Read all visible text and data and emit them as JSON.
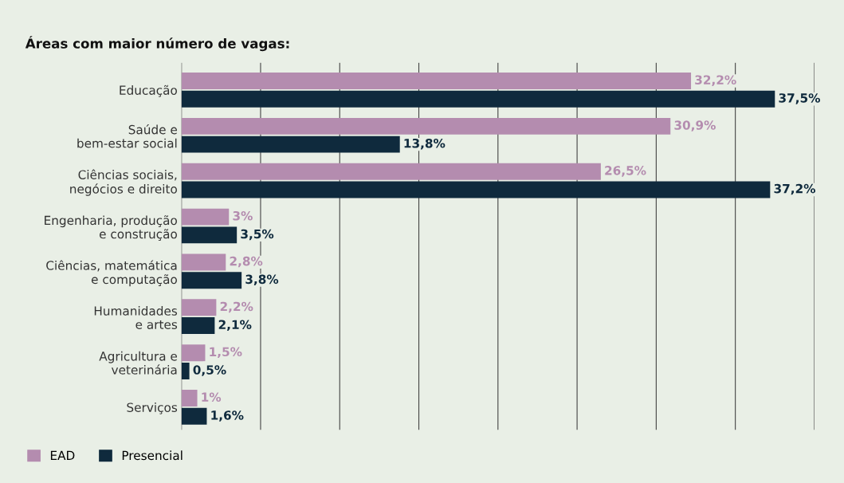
{
  "chart_data": {
    "type": "bar",
    "orientation": "horizontal",
    "title": "Áreas com maior número de vagas:",
    "categories": [
      "Educação",
      "Saúde e\nbem-estar social",
      "Ciências sociais,\nnegócios e direito",
      "Engenharia, produção\ne construção",
      "Ciências, matemática\ne computação",
      "Humanidades\ne artes",
      "Agricultura e\nveterinária",
      "Serviços"
    ],
    "series": [
      {
        "name": "EAD",
        "color": "#b48caf",
        "values": [
          32.2,
          30.9,
          26.5,
          3,
          2.8,
          2.2,
          1.5,
          1
        ],
        "value_labels": [
          "32,2%",
          "30,9%",
          "26,5%",
          "3%",
          "2,8%",
          "2,2%",
          "1,5%",
          "1%"
        ]
      },
      {
        "name": "Presencial",
        "color": "#0f2a3d",
        "values": [
          37.5,
          13.8,
          37.2,
          3.5,
          3.8,
          2.1,
          0.5,
          1.6
        ],
        "value_labels": [
          "37,5%",
          "13,8%",
          "37,2%",
          "3,5%",
          "3,8%",
          "2,1%",
          "0,5%",
          "1,6%"
        ]
      }
    ],
    "xlim": [
      0,
      40
    ],
    "xticks": [
      {
        "value": 0,
        "label": null
      },
      {
        "value": 5,
        "label": null
      },
      {
        "value": 10,
        "label": null
      },
      {
        "value": 15,
        "label": null
      },
      {
        "value": 20,
        "label": null
      },
      {
        "value": 25,
        "label": null
      },
      {
        "value": 30,
        "label": null
      },
      {
        "value": 35,
        "label": null
      },
      {
        "value": 40,
        "label": null
      }
    ],
    "tick_labels": "y",
    "grid": "x",
    "legend": "bottom left"
  }
}
